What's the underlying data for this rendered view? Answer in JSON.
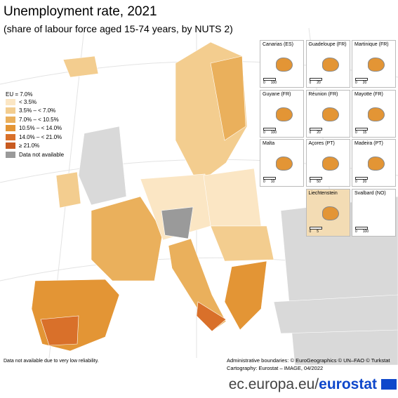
{
  "header": {
    "title": "Unemployment rate, 2021",
    "subtitle": "(share of labour force aged 15-74 years, by NUTS 2)"
  },
  "legend": {
    "title": "EU = 7.0%",
    "items": [
      {
        "label": "< 3.5%",
        "color": "#fbe6c4"
      },
      {
        "label": "3.5% – < 7.0%",
        "color": "#f3cd8f"
      },
      {
        "label": "7.0% – < 10.5%",
        "color": "#eab05c"
      },
      {
        "label": "10.5% – < 14.0%",
        "color": "#e39535"
      },
      {
        "label": "14.0% – < 21.0%",
        "color": "#d9702a"
      },
      {
        "label": "≥ 21.0%",
        "color": "#c85a1f"
      },
      {
        "label": "Data not available",
        "color": "#9a9a9a"
      }
    ]
  },
  "insets": [
    {
      "label": "Canarias (ES)",
      "scale": [
        "0",
        "100"
      ]
    },
    {
      "label": "Guadeloupe (FR)",
      "scale": [
        "0",
        "20"
      ]
    },
    {
      "label": "Martinique (FR)",
      "scale": [
        "0",
        "20"
      ]
    },
    {
      "label": "Guyane (FR)",
      "scale": [
        "0",
        "100"
      ]
    },
    {
      "label": "Réunion (FR)",
      "scale": [
        "0",
        "20"
      ]
    },
    {
      "label": "Mayotte (FR)",
      "scale": [
        "0",
        "15"
      ]
    },
    {
      "label": "Malta",
      "scale": [
        "0",
        "10"
      ]
    },
    {
      "label": "Açores (PT)",
      "scale": [
        "0",
        "50"
      ]
    },
    {
      "label": "Madeira (PT)",
      "scale": [
        "0",
        "20"
      ]
    },
    {
      "label": "Liechtenstein",
      "scale": [
        "0",
        "5"
      ]
    },
    {
      "label": "Svalbard (NO)",
      "scale": [
        "0",
        "100"
      ]
    }
  ],
  "footer": {
    "note": "Data not available due to very low reliability.",
    "credits": [
      "Administrative boundaries: © EuroGeographics © UN–FAO © Turkstat",
      "Cartography: Eurostat – IMAGE, 04/2022"
    ],
    "site": "ec.europa.eu/",
    "brand": "eurostat"
  }
}
